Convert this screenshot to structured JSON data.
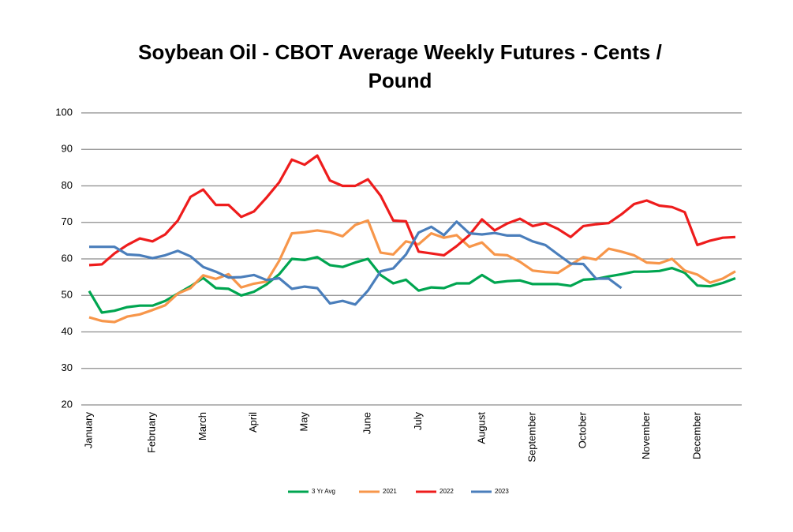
{
  "chart_data": {
    "type": "line",
    "title": "Soybean Oil - CBOT Average Weekly Futures - Cents / Pound",
    "categories": [
      "January",
      null,
      null,
      null,
      null,
      "February",
      null,
      null,
      null,
      "March",
      null,
      null,
      null,
      "April",
      null,
      null,
      null,
      "May",
      null,
      null,
      null,
      null,
      "June",
      null,
      null,
      null,
      "July",
      null,
      null,
      null,
      null,
      "August",
      null,
      null,
      null,
      "September",
      null,
      null,
      null,
      "October",
      null,
      null,
      null,
      null,
      "November",
      null,
      null,
      null,
      "December",
      null,
      null,
      null
    ],
    "series": [
      {
        "name": "3 Yr Avg",
        "color": "#00a550",
        "values": [
          51.2,
          45.3,
          45.8,
          46.8,
          47.2,
          47.2,
          48.5,
          50.5,
          52.5,
          54.8,
          52,
          51.8,
          50,
          51,
          53,
          55.8,
          60,
          59.7,
          60.5,
          58.3,
          57.8,
          59,
          60,
          55.6,
          53.3,
          54.3,
          51.3,
          52.2,
          52,
          53.3,
          53.3,
          55.6,
          53.5,
          53.9,
          54.1,
          53.1,
          53.1,
          53.1,
          52.6,
          54.3,
          54.5,
          55.2,
          55.8,
          56.5,
          56.5,
          56.7,
          57.5,
          56.2,
          52.7,
          52.5,
          53.4,
          54.7
        ]
      },
      {
        "name": "2021",
        "color": "#f7964a",
        "values": [
          44,
          43,
          42.7,
          44.2,
          44.8,
          46,
          47.3,
          50.5,
          52,
          55.5,
          54.5,
          55.8,
          52.2,
          53.2,
          53.8,
          59.5,
          67,
          67.3,
          67.8,
          67.3,
          66.2,
          69.3,
          70.5,
          61.7,
          61.2,
          64.8,
          64,
          67,
          65.8,
          66.5,
          63.3,
          64.5,
          61.2,
          61,
          59.2,
          56.8,
          56.4,
          56.2,
          58.4,
          60.5,
          59.8,
          62.8,
          62,
          61,
          59,
          58.8,
          60,
          56.8,
          55.7,
          53.5,
          54.6,
          56.6
        ]
      },
      {
        "name": "2022",
        "color": "#ee1c1c",
        "values": [
          58.3,
          58.5,
          61.5,
          63.8,
          65.6,
          64.8,
          66.7,
          70.5,
          77,
          79,
          74.8,
          74.8,
          71.5,
          73,
          76.8,
          81,
          87.2,
          85.8,
          88.3,
          81.5,
          80,
          80,
          81.8,
          77.3,
          70.5,
          70.3,
          62,
          61.5,
          61,
          63.5,
          66.5,
          70.8,
          67.8,
          69.7,
          71,
          69,
          69.8,
          68.2,
          66,
          69,
          69.5,
          69.8,
          72.2,
          75,
          76,
          74.6,
          74.2,
          72.8,
          63.8,
          65,
          65.8,
          66
        ]
      },
      {
        "name": "2023",
        "color": "#4a7ebb",
        "values": [
          63.3,
          63.3,
          63.3,
          61.2,
          61,
          60.2,
          61,
          62.2,
          60.7,
          57.8,
          56.5,
          54.9,
          55,
          55.6,
          54.2,
          54.7,
          51.8,
          52.4,
          52,
          47.8,
          48.5,
          47.5,
          51.3,
          56.6,
          57.4,
          61.2,
          67.2,
          68.8,
          66.5,
          70.2,
          67,
          66.7,
          67.1,
          66.4,
          66.4,
          64.8,
          63.8,
          61.2,
          58.7,
          58.6,
          54.6,
          54.6,
          52,
          null,
          null,
          null,
          null,
          null,
          null,
          null,
          null,
          null
        ]
      }
    ],
    "ylim": [
      20,
      100
    ],
    "yticks": [
      20,
      30,
      40,
      50,
      60,
      70,
      80,
      90,
      100
    ],
    "grid": true,
    "legend": "bottom"
  }
}
